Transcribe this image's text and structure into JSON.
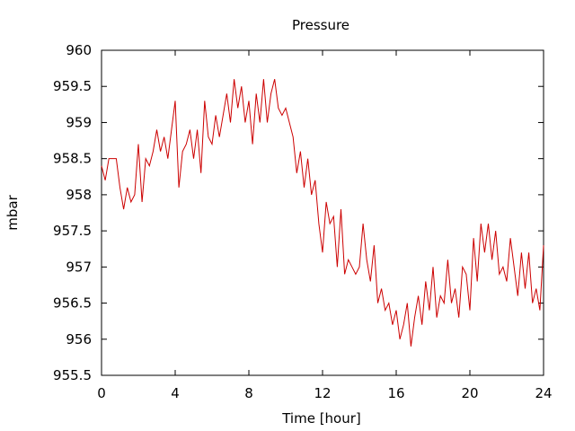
{
  "chart_data": {
    "type": "line",
    "title": "Pressure",
    "xlabel": "Time [hour]",
    "ylabel": "mbar",
    "xlim": [
      0,
      24
    ],
    "ylim": [
      955.5,
      960
    ],
    "x_ticks": [
      0,
      4,
      8,
      12,
      16,
      20,
      24
    ],
    "y_ticks": [
      955.5,
      956,
      956.5,
      957,
      957.5,
      958,
      958.5,
      959,
      959.5,
      960
    ],
    "y_tick_labels": [
      "955.5",
      "956",
      "956.5",
      "957",
      "957.5",
      "958",
      "958.5",
      "959",
      "959.5",
      "960"
    ],
    "grid": false,
    "legend": false,
    "series": [
      {
        "color": "#cc0000",
        "x": [
          0,
          0.2,
          0.4,
          0.6,
          0.8,
          1,
          1.2,
          1.4,
          1.6,
          1.8,
          2,
          2.2,
          2.4,
          2.6,
          2.8,
          3,
          3.2,
          3.4,
          3.6,
          3.8,
          4,
          4.2,
          4.4,
          4.6,
          4.8,
          5,
          5.2,
          5.4,
          5.6,
          5.8,
          6,
          6.2,
          6.4,
          6.6,
          6.8,
          7,
          7.2,
          7.4,
          7.6,
          7.8,
          8,
          8.2,
          8.4,
          8.6,
          8.8,
          9,
          9.2,
          9.4,
          9.6,
          9.8,
          10,
          10.2,
          10.4,
          10.6,
          10.8,
          11,
          11.2,
          11.4,
          11.6,
          11.8,
          12,
          12.2,
          12.4,
          12.6,
          12.8,
          13,
          13.2,
          13.4,
          13.6,
          13.8,
          14,
          14.2,
          14.4,
          14.6,
          14.8,
          15,
          15.2,
          15.4,
          15.6,
          15.8,
          16,
          16.2,
          16.4,
          16.6,
          16.8,
          17,
          17.2,
          17.4,
          17.6,
          17.8,
          18,
          18.2,
          18.4,
          18.6,
          18.8,
          19,
          19.2,
          19.4,
          19.6,
          19.8,
          20,
          20.2,
          20.4,
          20.6,
          20.8,
          21,
          21.2,
          21.4,
          21.6,
          21.8,
          22,
          22.2,
          22.4,
          22.6,
          22.8,
          23,
          23.2,
          23.4,
          23.6,
          23.8,
          24
        ],
        "values": [
          958.4,
          958.2,
          958.5,
          958.5,
          958.5,
          958.1,
          957.8,
          958.1,
          957.9,
          958.0,
          958.7,
          957.9,
          958.5,
          958.4,
          958.6,
          958.9,
          958.6,
          958.8,
          958.5,
          958.9,
          959.3,
          958.1,
          958.6,
          958.7,
          958.9,
          958.5,
          958.9,
          958.3,
          959.3,
          958.8,
          958.7,
          959.1,
          958.8,
          959.1,
          959.4,
          959.0,
          959.6,
          959.2,
          959.5,
          959.0,
          959.3,
          958.7,
          959.4,
          959.0,
          959.6,
          959.0,
          959.4,
          959.6,
          959.2,
          959.1,
          959.2,
          959.0,
          958.8,
          958.3,
          958.6,
          958.1,
          958.5,
          958.0,
          958.2,
          957.6,
          957.2,
          957.9,
          957.6,
          957.7,
          957.0,
          957.8,
          956.9,
          957.1,
          957.0,
          956.9,
          957.0,
          957.6,
          957.1,
          956.8,
          957.3,
          956.5,
          956.7,
          956.4,
          956.5,
          956.2,
          956.4,
          956.0,
          956.2,
          956.5,
          955.9,
          956.3,
          956.6,
          956.2,
          956.8,
          956.4,
          957.0,
          956.3,
          956.6,
          956.5,
          957.1,
          956.5,
          956.7,
          956.3,
          957.0,
          956.9,
          956.4,
          957.4,
          956.8,
          957.6,
          957.2,
          957.6,
          957.1,
          957.5,
          956.9,
          957.0,
          956.8,
          957.4,
          957.0,
          956.6,
          957.2,
          956.7,
          957.2,
          956.5,
          956.7,
          956.4,
          957.3
        ]
      }
    ]
  }
}
